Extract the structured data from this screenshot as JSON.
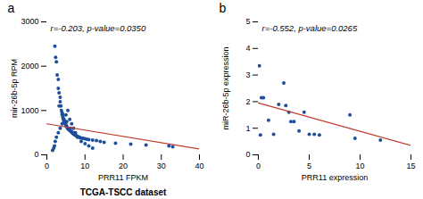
{
  "chart_data": [
    {
      "type": "scatter",
      "title": "a",
      "xlabel": "PRR11 FPKM",
      "ylabel": "mir-26b-5p RPM",
      "annotations": [
        "r=-0.203, p-value=0.0350"
      ],
      "caption": "TCGA-TSCC dataset",
      "xlim": [
        0,
        40
      ],
      "ylim": [
        0,
        3000
      ],
      "xticks": [
        0,
        10,
        20,
        30,
        40
      ],
      "yticks": [
        0,
        1000,
        2000,
        3000
      ],
      "series": [
        {
          "type": "scatter",
          "color": "#1f4e9b",
          "x": [
            2.1,
            2.3,
            2.5,
            2.7,
            3.0,
            3.0,
            3.2,
            3.5,
            3.5,
            3.7,
            3.8,
            4.0,
            4.0,
            4.2,
            4.3,
            4.5,
            4.5,
            4.7,
            4.8,
            5.0,
            5.0,
            5.2,
            5.3,
            5.5,
            5.5,
            5.7,
            5.8,
            6.0,
            6.0,
            6.2,
            6.3,
            6.5,
            6.5,
            6.7,
            6.8,
            7.0,
            7.0,
            7.2,
            7.5,
            7.5,
            7.8,
            8.0,
            8.2,
            8.5,
            8.7,
            9.0,
            9.5,
            10.0,
            10.5,
            11.0,
            12.0,
            13.0,
            14.0,
            15.0,
            18.0,
            22.0,
            26.0,
            32.0,
            33.0,
            1.5,
            1.8,
            2.0,
            2.2,
            2.5,
            3.0,
            3.5,
            4.0,
            4.5,
            5.0,
            5.5,
            6.0,
            6.5,
            7.0,
            7.5,
            8.0,
            9.0,
            10.0,
            11.0,
            12.0,
            3.2,
            4.2,
            5.2,
            6.2,
            7.2
          ],
          "values": [
            2450,
            2200,
            2100,
            1800,
            1700,
            1500,
            1400,
            1300,
            1200,
            1100,
            1000,
            950,
            900,
            850,
            800,
            780,
            750,
            720,
            700,
            680,
            660,
            640,
            620,
            600,
            590,
            580,
            570,
            560,
            550,
            540,
            530,
            520,
            510,
            500,
            490,
            480,
            470,
            460,
            450,
            440,
            430,
            420,
            410,
            400,
            390,
            380,
            370,
            360,
            350,
            340,
            330,
            320,
            300,
            280,
            260,
            240,
            220,
            200,
            180,
            100,
            150,
            200,
            300,
            400,
            500,
            600,
            700,
            800,
            900,
            1000,
            800,
            700,
            600,
            500,
            400,
            300,
            250,
            200,
            150,
            1100,
            900,
            750,
            600,
            500
          ]
        },
        {
          "type": "line",
          "color": "#c0392b",
          "x": [
            0,
            40
          ],
          "values": [
            700,
            130
          ]
        }
      ]
    },
    {
      "type": "scatter",
      "title": "b",
      "xlabel": "PRR11 expression",
      "ylabel": "miR-26b-5p expression",
      "annotations": [
        "r=-0.552, p-value=0.0265"
      ],
      "xlim": [
        0,
        15
      ],
      "ylim": [
        0,
        5
      ],
      "xticks": [
        0,
        5,
        10,
        15
      ],
      "yticks": [
        0,
        1,
        2,
        3,
        4,
        5
      ],
      "series": [
        {
          "type": "scatter",
          "color": "#1f4e9b",
          "x": [
            0.1,
            0.2,
            0.3,
            0.5,
            1.0,
            1.5,
            2.0,
            2.5,
            2.7,
            3.0,
            3.2,
            3.5,
            4.0,
            4.5,
            5.0,
            5.5,
            6.0,
            9.0,
            9.5,
            12.0
          ],
          "values": [
            3.35,
            0.75,
            2.15,
            2.15,
            1.3,
            0.77,
            1.9,
            2.7,
            1.85,
            1.6,
            1.25,
            1.25,
            0.9,
            1.6,
            0.77,
            0.77,
            0.75,
            1.5,
            0.62,
            0.55
          ]
        },
        {
          "type": "line",
          "color": "#c0392b",
          "x": [
            0,
            15
          ],
          "values": [
            1.95,
            0.35
          ]
        }
      ]
    }
  ]
}
